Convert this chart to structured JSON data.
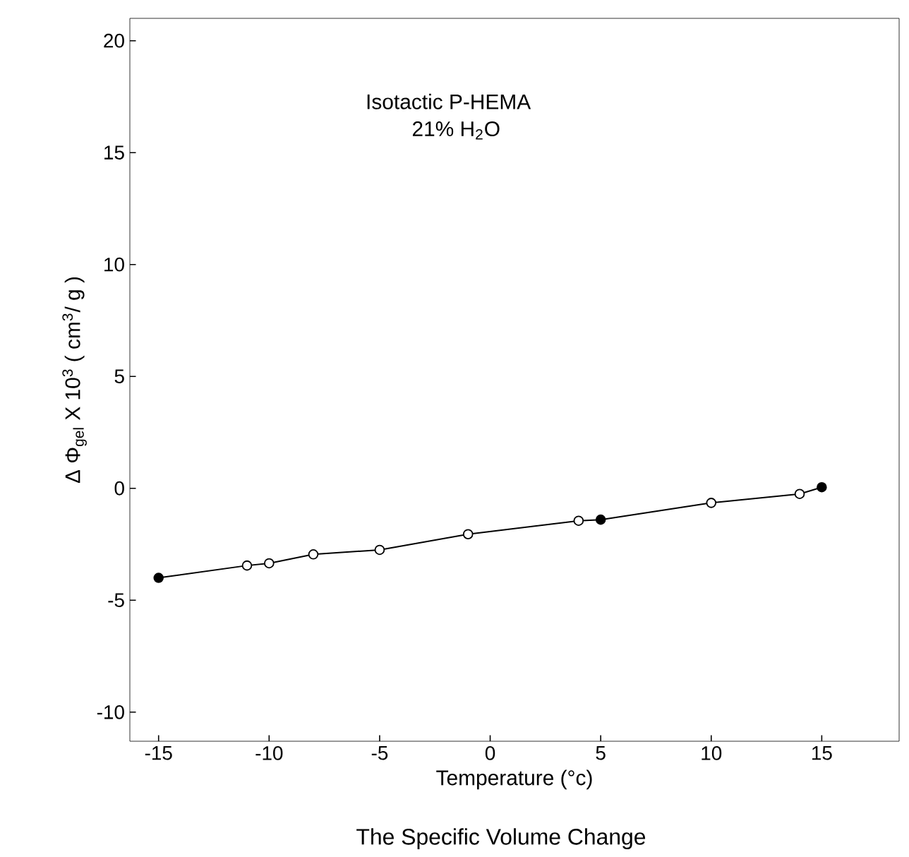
{
  "chart_data": {
    "type": "scatter",
    "xlabel": "Temperature (°c)",
    "ylabel": "Δ Φ$_{gel}$  X 10$^{3}$ ( cm$^{3}$/ g )",
    "annotations": [
      "Isotactic    P-HEMA",
      "21%    H$_{2}$O",
      "The   Specific   Volume   Change"
    ],
    "series": [
      {
        "type": "line",
        "color": "#000000",
        "marker": "none",
        "x": [
          -15,
          -11,
          -10,
          -8,
          -5,
          -1,
          4,
          5,
          10,
          14,
          15
        ],
        "values": [
          -4.0,
          -3.45,
          -3.35,
          -2.95,
          -2.75,
          -2.05,
          -1.45,
          -1.4,
          -0.65,
          -0.25,
          0.05
        ]
      },
      {
        "color": "#ffffff",
        "marker": "circle",
        "x": [
          -11,
          -10,
          -8,
          -5,
          -1,
          4,
          10,
          14
        ],
        "values": [
          -3.45,
          -3.35,
          -2.95,
          -2.75,
          -2.05,
          -1.45,
          -0.65,
          -0.25
        ]
      },
      {
        "color": "#000000",
        "marker": "circle",
        "x": [
          -15,
          5,
          15
        ],
        "values": [
          -4.0,
          -1.4,
          0.05
        ]
      }
    ],
    "xlim": [
      -16.3,
      18.5
    ],
    "ylim": [
      -11.3,
      21
    ],
    "xticks": [
      -15,
      -10,
      -5,
      0,
      5,
      10,
      15
    ],
    "yticks": [
      -10,
      -5,
      0,
      5,
      10,
      15,
      20
    ]
  }
}
